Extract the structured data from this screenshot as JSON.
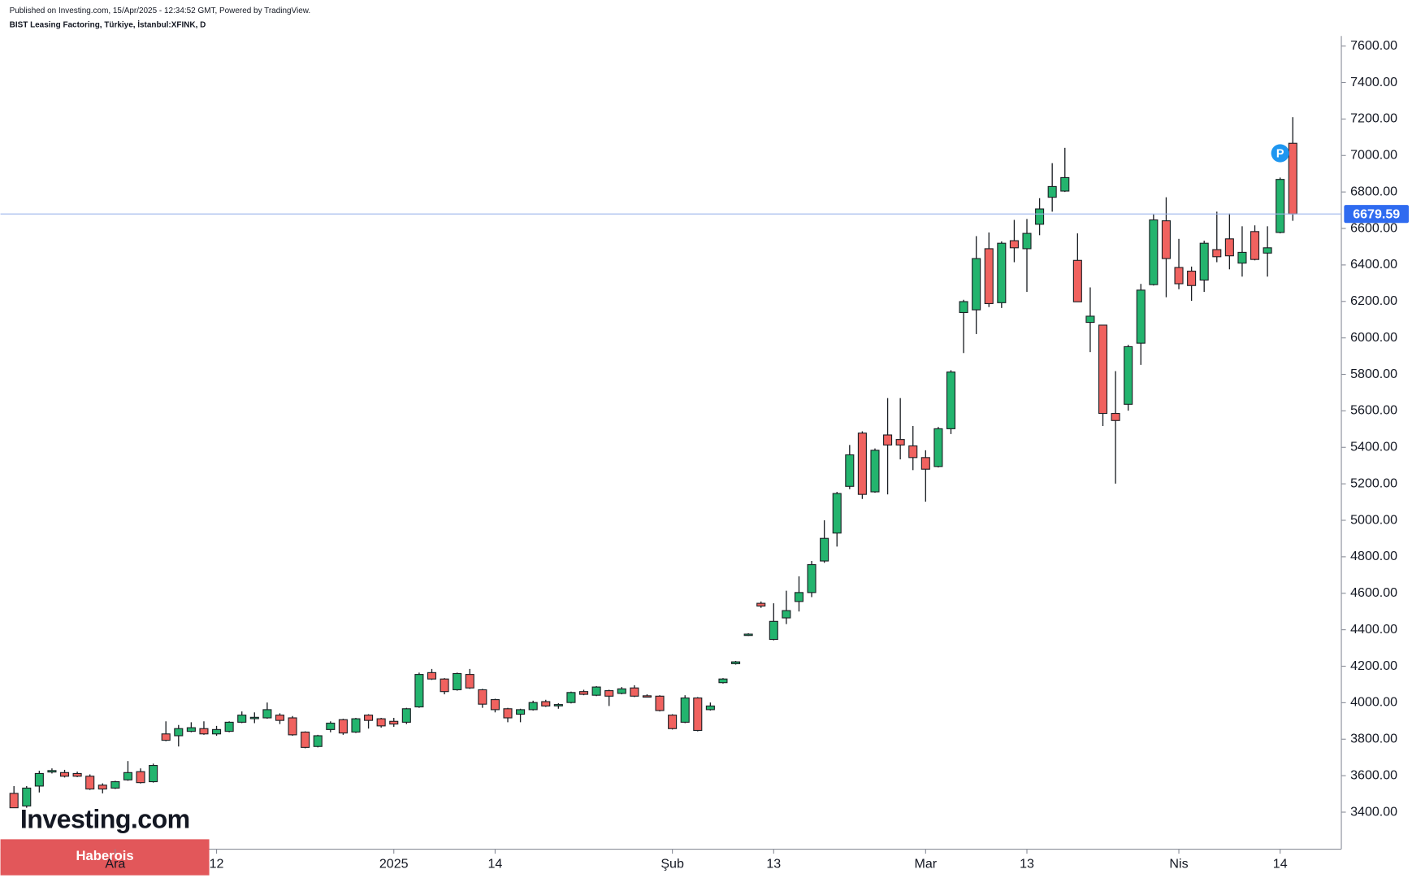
{
  "chart_data": {
    "type": "candlestick",
    "published": "Published on Investing.com, 15/Apr/2025 - 12:34:52 GMT, Powered by TradingView.",
    "title": "BIST Leasing Factoring, Türkiye, İstanbul:XFINK, D",
    "watermark": "Investing.com",
    "banner": "Haberois",
    "marker_label": "P",
    "up_color": "#23b46e",
    "down_color": "#f0625f",
    "price_line_color": "#9db6ec",
    "price_label_color": "#2f6bf0",
    "last_price": 6679.59,
    "categories": [
      null,
      null,
      null,
      null,
      null,
      null,
      null,
      null,
      "Ara",
      null,
      null,
      null,
      null,
      null,
      null,
      null,
      "12",
      null,
      null,
      null,
      null,
      null,
      null,
      null,
      null,
      null,
      null,
      null,
      null,
      null,
      "2025",
      null,
      null,
      null,
      null,
      null,
      null,
      null,
      "14",
      null,
      null,
      null,
      null,
      null,
      null,
      null,
      null,
      null,
      null,
      null,
      null,
      null,
      "Şub",
      null,
      null,
      null,
      null,
      null,
      null,
      null,
      "13",
      null,
      null,
      null,
      null,
      null,
      null,
      null,
      null,
      null,
      null,
      null,
      "Mar",
      null,
      null,
      null,
      null,
      null,
      null,
      null,
      "13",
      null,
      null,
      null,
      null,
      null,
      null,
      null,
      null,
      null,
      null,
      null,
      "Nis",
      null,
      null,
      null,
      null,
      null,
      null,
      null,
      "14",
      null
    ],
    "open": [
      3503,
      3434,
      3543,
      3620,
      3617,
      3612,
      3597,
      3548,
      3532,
      3577,
      3622,
      3567,
      3829,
      3819,
      3843,
      3858,
      3829,
      3843,
      3893,
      3917,
      3917,
      3932,
      3917,
      3839,
      3760,
      3853,
      3907,
      3839,
      3932,
      3912,
      3898,
      3893,
      3977,
      4165,
      4130,
      4071,
      4155,
      4071,
      4017,
      3967,
      3937,
      3962,
      4006,
      3987,
      4001,
      4061,
      4041,
      4066,
      4051,
      4081,
      4038,
      4036,
      3932,
      3893,
      4026,
      3962,
      4110,
      4214,
      4371,
      4545,
      4347,
      4465,
      4555,
      4604,
      4777,
      4930,
      5186,
      5478,
      5156,
      5468,
      5443,
      5408,
      5344,
      5295,
      5502,
      6139,
      6154,
      6489,
      6193,
      6533,
      6489,
      6623,
      6771,
      6805,
      6425,
      6085,
      6070,
      5586,
      5636,
      5971,
      6292,
      6642,
      6386,
      6366,
      6317,
      6484,
      6543,
      6410,
      6583,
      6465,
      6578,
      7067
    ],
    "high": [
      3543,
      3543,
      3627,
      3640,
      3632,
      3622,
      3607,
      3558,
      3572,
      3680,
      3640,
      3666,
      3898,
      3878,
      3893,
      3898,
      3873,
      3898,
      3952,
      3947,
      4001,
      3942,
      3927,
      3843,
      3824,
      3898,
      3912,
      3917,
      3937,
      3917,
      3917,
      3972,
      4165,
      4185,
      4135,
      4165,
      4185,
      4076,
      4022,
      3972,
      3967,
      4011,
      4016,
      3997,
      4061,
      4071,
      4091,
      4071,
      4086,
      4096,
      4046,
      4041,
      3937,
      4041,
      4031,
      4001,
      4135,
      4229,
      4381,
      4555,
      4545,
      4614,
      4693,
      4777,
      5000,
      5156,
      5413,
      5488,
      5394,
      5670,
      5670,
      5517,
      5384,
      5512,
      5823,
      6209,
      6558,
      6578,
      6529,
      6647,
      6652,
      6766,
      6958,
      7042,
      6573,
      6277,
      6070,
      5818,
      5962,
      6296,
      6677,
      6771,
      6543,
      6391,
      6533,
      6692,
      6682,
      6612,
      6617,
      6612,
      6879,
      7210
    ],
    "low": [
      3424,
      3424,
      3508,
      3612,
      3590,
      3592,
      3522,
      3503,
      3527,
      3572,
      3557,
      3562,
      3789,
      3760,
      3838,
      3824,
      3819,
      3838,
      3888,
      3888,
      3912,
      3883,
      3819,
      3750,
      3755,
      3838,
      3824,
      3834,
      3858,
      3863,
      3868,
      3883,
      3972,
      4125,
      4046,
      4066,
      4076,
      3972,
      3947,
      3893,
      3893,
      3957,
      3977,
      3967,
      3996,
      4041,
      4036,
      3982,
      4046,
      4031,
      4031,
      3952,
      3853,
      3888,
      3843,
      3957,
      4105,
      4209,
      4366,
      4520,
      4342,
      4431,
      4500,
      4579,
      4767,
      4856,
      5171,
      5117,
      5151,
      5142,
      5334,
      5275,
      5102,
      5290,
      5473,
      5917,
      6021,
      6169,
      6164,
      6415,
      6252,
      6563,
      6692,
      6800,
      6198,
      5922,
      5517,
      5201,
      5601,
      5852,
      6287,
      6223,
      6267,
      6203,
      6252,
      6415,
      6376,
      6336,
      6425,
      6336,
      6573,
      6642
    ],
    "close": [
      3424,
      3532,
      3612,
      3628,
      3597,
      3597,
      3527,
      3527,
      3567,
      3617,
      3562,
      3656,
      3794,
      3858,
      3863,
      3829,
      3853,
      3893,
      3932,
      3920,
      3962,
      3903,
      3824,
      3755,
      3819,
      3888,
      3834,
      3912,
      3903,
      3873,
      3883,
      3967,
      4155,
      4130,
      4061,
      4160,
      4081,
      3992,
      3962,
      3917,
      3962,
      4001,
      3982,
      3990,
      4056,
      4046,
      4086,
      4036,
      4076,
      4036,
      4036,
      3957,
      3858,
      4026,
      3848,
      3982,
      4130,
      4224,
      4376,
      4530,
      4446,
      4505,
      4604,
      4757,
      4901,
      5147,
      5359,
      5142,
      5384,
      5413,
      5413,
      5344,
      5280,
      5502,
      5813,
      6199,
      6435,
      6188,
      6519,
      6494,
      6573,
      6707,
      6830,
      6879,
      6198,
      6119,
      5586,
      5547,
      5952,
      6262,
      6647,
      6435,
      6297,
      6287,
      6519,
      6445,
      6450,
      6469,
      6430,
      6494,
      6869,
      6679.59
    ],
    "ylim": [
      3197,
      7655
    ],
    "yticks": [
      {
        "value": 3400,
        "label": "3400.00"
      },
      {
        "value": 3600,
        "label": "3600.00"
      },
      {
        "value": 3800,
        "label": "3800.00"
      },
      {
        "value": 4000,
        "label": "4000.00"
      },
      {
        "value": 4200,
        "label": "4200.00"
      },
      {
        "value": 4400,
        "label": "4400.00"
      },
      {
        "value": 4600,
        "label": "4600.00"
      },
      {
        "value": 4800,
        "label": "4800.00"
      },
      {
        "value": 5000,
        "label": "5000.00"
      },
      {
        "value": 5200,
        "label": "5200.00"
      },
      {
        "value": 5400,
        "label": "5400.00"
      },
      {
        "value": 5600,
        "label": "5600.00"
      },
      {
        "value": 5800,
        "label": "5800.00"
      },
      {
        "value": 6000,
        "label": "6000.00"
      },
      {
        "value": 6200,
        "label": "6200.00"
      },
      {
        "value": 6400,
        "label": "6400.00"
      },
      {
        "value": 6600,
        "label": "6600.00"
      },
      {
        "value": 6800,
        "label": "6800.00"
      },
      {
        "value": 7000,
        "label": "7000.00"
      },
      {
        "value": 7200,
        "label": "7200.00"
      },
      {
        "value": 7400,
        "label": "7400.00"
      },
      {
        "value": 7600,
        "label": "7600.00"
      }
    ],
    "grid": false
  }
}
